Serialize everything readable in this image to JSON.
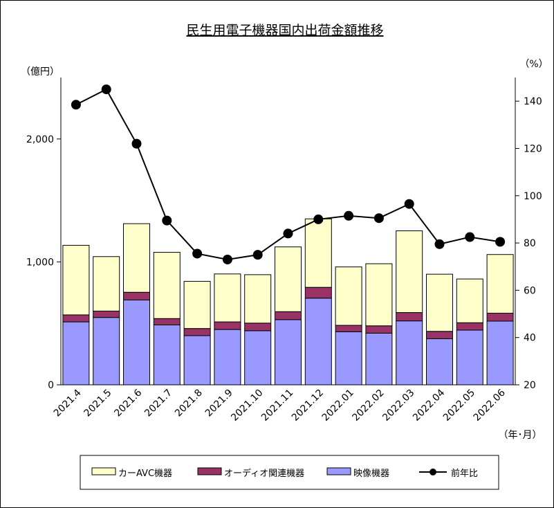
{
  "chart_data": {
    "type": "bar",
    "stacked": true,
    "title": "民生用電子機器国内出荷金額推移",
    "y_left_unit": "（億円）",
    "y_right_unit": "（%）",
    "x_unit": "（年･月）",
    "categories": [
      "2021.4",
      "2021.5",
      "2021.6",
      "2021.7",
      "2021.8",
      "2021.9",
      "2021.10",
      "2021.11",
      "2021.12",
      "2022.01",
      "2022.02",
      "2022.03",
      "2022.04",
      "2022.05",
      "2022.06"
    ],
    "y_left": {
      "min": 0,
      "max": 2500,
      "ticks": [
        0,
        1000,
        2000
      ],
      "tick_labels": [
        "0",
        "1,000",
        "2,000"
      ]
    },
    "y_right": {
      "min": 20,
      "max": 150,
      "ticks": [
        20,
        40,
        60,
        80,
        100,
        120,
        140
      ],
      "tick_labels": [
        "20",
        "40",
        "60",
        "80",
        "100",
        "120",
        "140"
      ]
    },
    "series": [
      {
        "name": "映像機器",
        "kind": "bar",
        "color": "#9999ff",
        "values": [
          512,
          548,
          690,
          487,
          400,
          450,
          440,
          530,
          705,
          432,
          420,
          520,
          375,
          445,
          518
        ]
      },
      {
        "name": "オーディオ関連機器",
        "kind": "bar",
        "color": "#993366",
        "values": [
          57,
          52,
          63,
          52,
          58,
          62,
          62,
          65,
          88,
          52,
          60,
          68,
          60,
          60,
          65
        ]
      },
      {
        "name": "カーAVC機器",
        "kind": "bar",
        "color": "#ffffcc",
        "values": [
          566,
          443,
          558,
          539,
          384,
          390,
          394,
          527,
          557,
          475,
          505,
          665,
          465,
          356,
          477
        ]
      },
      {
        "name": "前年比",
        "kind": "line",
        "axis": "right",
        "color": "#000000",
        "values": [
          138.5,
          145,
          122,
          89.5,
          75.5,
          73,
          75,
          84,
          90,
          91.5,
          90.5,
          96.5,
          79.5,
          82.5,
          80.5
        ]
      }
    ],
    "legend": {
      "placement": "bottom",
      "order": [
        "カーAVC機器",
        "オーディオ関連機器",
        "映像機器",
        "前年比"
      ]
    }
  }
}
